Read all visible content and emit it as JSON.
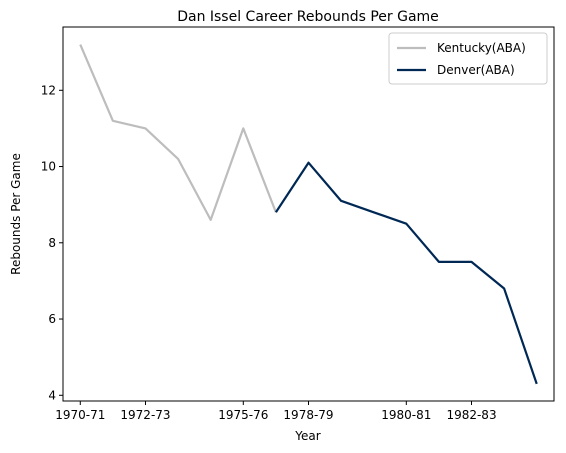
{
  "chart_data": {
    "type": "line",
    "title": "Dan Issel Career Rebounds Per Game",
    "xlabel": "Year",
    "ylabel": "Rebounds Per Game",
    "x_tick_labels": [
      "1970-71",
      "1972-73",
      "1975-76",
      "1978-79",
      "1980-81",
      "1982-83"
    ],
    "x_tick_positions": [
      0,
      2,
      5,
      7,
      10,
      12
    ],
    "y_ticks": [
      4,
      6,
      8,
      10,
      12
    ],
    "xlim": [
      -0.53,
      14.53
    ],
    "ylim": [
      3.85,
      13.66
    ],
    "grid": false,
    "legend_position": "upper right",
    "series": [
      {
        "name": "Kentucky(ABA)",
        "color": "#bdbdbd",
        "x": [
          0,
          1,
          2,
          3,
          4,
          5,
          6
        ],
        "y": [
          13.2,
          11.2,
          11.0,
          10.2,
          8.6,
          11.0,
          8.8
        ]
      },
      {
        "name": "Denver(ABA)",
        "color": "#002855",
        "x": [
          6,
          7,
          8,
          9,
          10,
          11,
          12,
          13,
          14
        ],
        "y": [
          8.8,
          10.1,
          9.1,
          8.8,
          8.5,
          7.5,
          7.5,
          6.8,
          4.3
        ]
      }
    ]
  }
}
